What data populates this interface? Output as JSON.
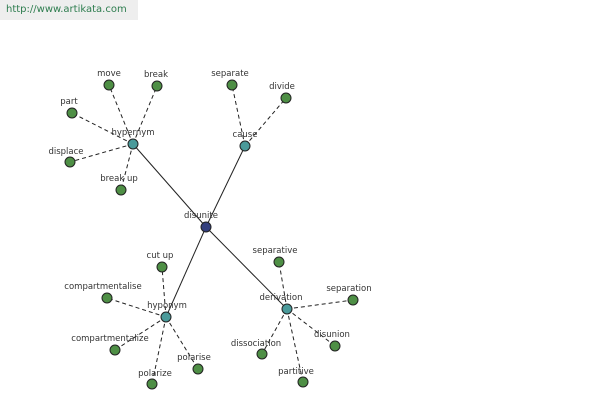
{
  "header": {
    "url": "http://www.artikata.com"
  },
  "nodes": [
    {
      "label": "disunite"
    },
    {
      "label": "hypernym"
    },
    {
      "label": "cause"
    },
    {
      "label": "hyponym"
    },
    {
      "label": "derivation"
    },
    {
      "label": "move"
    },
    {
      "label": "break"
    },
    {
      "label": "part"
    },
    {
      "label": "displace"
    },
    {
      "label": "break up"
    },
    {
      "label": "separate"
    },
    {
      "label": "divide"
    },
    {
      "label": "cut up"
    },
    {
      "label": "compartmentalise"
    },
    {
      "label": "compartmentalize"
    },
    {
      "label": "polarize"
    },
    {
      "label": "polarise"
    },
    {
      "label": "separative"
    },
    {
      "label": "separation"
    },
    {
      "label": "disunion"
    },
    {
      "label": "partitive"
    },
    {
      "label": "dissociation"
    }
  ]
}
